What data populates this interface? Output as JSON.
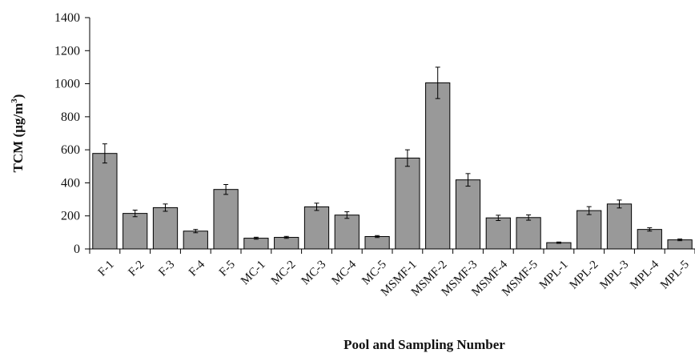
{
  "chart_data": {
    "type": "bar",
    "title": "",
    "xlabel": "Pool and Sampling Number",
    "ylabel_main": "TCM (µg/m",
    "ylabel_sup": "3",
    "ylabel_close": ")",
    "ylim": [
      0,
      1400
    ],
    "yticks": [
      0,
      200,
      400,
      600,
      800,
      1000,
      1200,
      1400
    ],
    "grid": false,
    "bar_color": "#999999",
    "categories": [
      "F-1",
      "F-2",
      "F-3",
      "F-4",
      "F-5",
      "MC-1",
      "MC-2",
      "MC-3",
      "MC-4",
      "MC-5",
      "MSMF-1",
      "MSMF-2",
      "MSMF-3",
      "MSMF-4",
      "MSMF-5",
      "MPL-1",
      "MPL-2",
      "MPL-3",
      "MPL-4",
      "MPL-5"
    ],
    "values": [
      578,
      215,
      250,
      108,
      360,
      65,
      70,
      255,
      205,
      75,
      550,
      1005,
      418,
      188,
      190,
      38,
      232,
      272,
      118,
      55
    ],
    "errors": [
      58,
      20,
      22,
      10,
      30,
      6,
      6,
      22,
      20,
      6,
      50,
      95,
      38,
      16,
      16,
      4,
      24,
      24,
      10,
      5
    ]
  }
}
